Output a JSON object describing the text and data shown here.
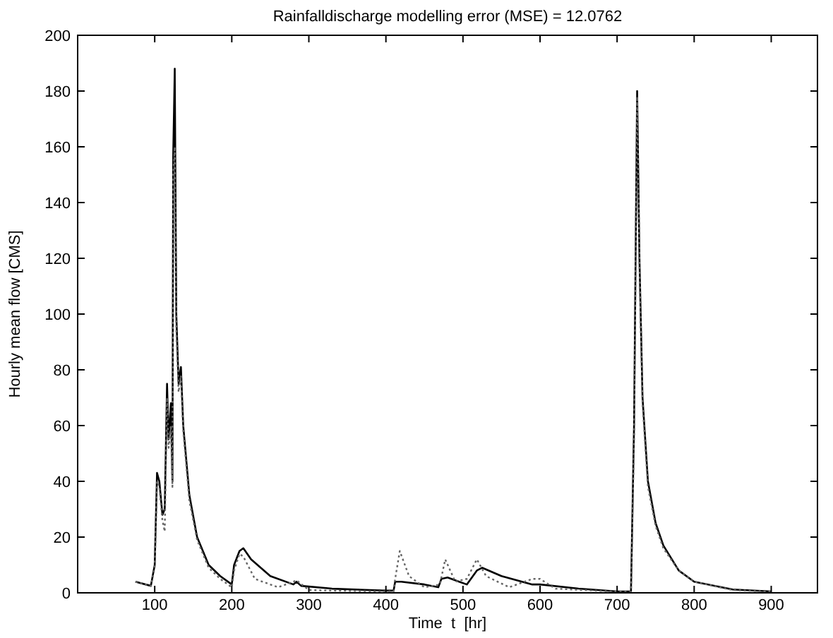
{
  "chart_data": {
    "type": "line",
    "title": "Rainfalldischarge modelling error (MSE) = 12.0762",
    "xlabel": "Time  t  [hr]",
    "ylabel": "Hourly mean flow [CMS]",
    "xlim": [
      0,
      960
    ],
    "xticks": [
      100,
      200,
      300,
      400,
      500,
      600,
      700,
      800,
      900
    ],
    "ylim": [
      0,
      200
    ],
    "yticks": [
      0,
      20,
      40,
      60,
      80,
      100,
      120,
      140,
      160,
      180,
      200
    ],
    "grid": false,
    "series": [
      {
        "color": "#000000",
        "line_style": "solid",
        "x": [
          75,
          95,
          100,
          103,
          106,
          110,
          113,
          116,
          118,
          121,
          123,
          124,
          126,
          128,
          131,
          134,
          137,
          145,
          155,
          170,
          185,
          200,
          203,
          210,
          215,
          225,
          250,
          280,
          284,
          290,
          330,
          400,
          410,
          412,
          420,
          450,
          468,
          472,
          480,
          495,
          505,
          518,
          525,
          550,
          590,
          600,
          650,
          700,
          718,
          722,
          726,
          729,
          733,
          740,
          750,
          760,
          780,
          800,
          850,
          900
        ],
        "values": [
          4,
          2.5,
          10,
          43,
          40,
          28,
          30,
          75,
          55,
          68,
          40,
          157,
          188,
          100,
          75,
          81,
          60,
          35,
          20,
          10,
          6,
          3,
          10,
          15,
          16,
          12,
          6,
          3,
          4,
          2.5,
          1.5,
          0.8,
          0.8,
          4,
          4,
          3,
          2,
          5,
          5.5,
          4,
          3,
          8,
          9,
          6,
          3,
          3,
          1.5,
          0.5,
          0.5,
          60,
          180,
          120,
          70,
          40,
          25,
          17,
          8,
          4,
          1.2,
          0.5
        ]
      },
      {
        "color": "#666666",
        "line_style": "dotted",
        "x": [
          75,
          95,
          100,
          103,
          106,
          110,
          113,
          116,
          118,
          121,
          123,
          124,
          126,
          128,
          131,
          134,
          137,
          145,
          155,
          170,
          185,
          200,
          203,
          210,
          215,
          230,
          260,
          280,
          284,
          300,
          330,
          400,
          410,
          412,
          418,
          430,
          450,
          470,
          477,
          490,
          505,
          518,
          530,
          560,
          590,
          600,
          620,
          700,
          718,
          722,
          726,
          729,
          733,
          740,
          750,
          760,
          780,
          800,
          850,
          900
        ],
        "values": [
          4,
          2.5,
          9,
          40,
          38,
          26,
          22,
          70,
          52,
          60,
          38,
          150,
          160,
          95,
          72,
          78,
          58,
          33,
          19,
          9,
          5,
          2,
          8,
          14,
          13,
          5,
          2,
          4,
          4.5,
          1,
          0.8,
          0.5,
          0.5,
          5,
          15,
          6,
          2,
          3,
          12,
          4,
          5,
          12,
          6,
          2,
          5,
          5,
          1.5,
          0.4,
          0.4,
          55,
          178,
          118,
          68,
          38,
          24,
          16,
          8,
          4,
          1,
          0.4
        ]
      }
    ]
  }
}
